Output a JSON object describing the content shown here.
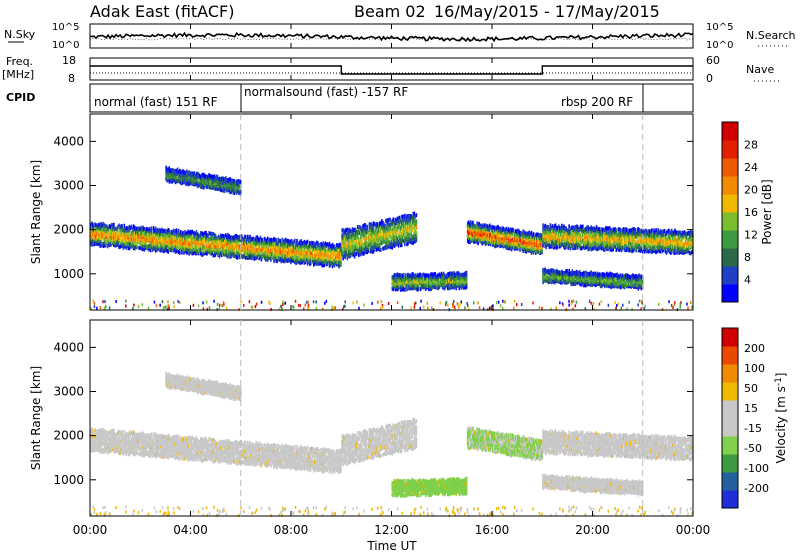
{
  "header": {
    "title": "Adak East (fitACF)",
    "beam": "Beam 02",
    "date_range": "16/May/2015 - 17/May/2015"
  },
  "panel_labels": {
    "nsky": "N.Sky",
    "nsearch": "N.Search",
    "freq": "Freq.",
    "freq_unit": "[MHz]",
    "nave": "Nave",
    "cpid": "CPID",
    "nsky_top": "10^5",
    "nsky_bottom": "10^0",
    "freq_top": "18",
    "freq_bottom": "8",
    "nave_top": "60",
    "nave_bottom": "0"
  },
  "cpid_segments": [
    {
      "label": "normal (fast) 151 RF",
      "start": "00:00",
      "end": "06:00"
    },
    {
      "label": "normalsound (fast) -157 RF",
      "start": "06:00",
      "end": "22:00"
    },
    {
      "label": "rbsp 200 RF",
      "start": "22:00",
      "end": "24:00"
    }
  ],
  "frequency_steps": [
    {
      "start_h": 0,
      "end_h": 10,
      "level": "high"
    },
    {
      "start_h": 10,
      "end_h": 18,
      "level": "low"
    },
    {
      "start_h": 18,
      "end_h": 24,
      "level": "high"
    }
  ],
  "colors": {
    "power": [
      "#0000ff",
      "#1f3fc4",
      "#2a6a4a",
      "#3e9a3e",
      "#7bbf2e",
      "#f0b800",
      "#f28a00",
      "#ef5a00",
      "#e22000",
      "#d00000"
    ],
    "velocity": [
      "#1f2fd8",
      "#2460a0",
      "#3e9a3e",
      "#7fd04a",
      "#c8c8c8",
      "#c8c8c8",
      "#f0b800",
      "#f08a00",
      "#ea4a00",
      "#d00000"
    ]
  },
  "chart_data": [
    {
      "type": "heatmap",
      "name": "power",
      "ylabel": "Slant Range [km]",
      "colorbar_label": "Power [dB]",
      "colorbar_ticks": [
        "4",
        "8",
        "12",
        "16",
        "20",
        "24",
        "28"
      ],
      "x_ticks": [
        "00:00",
        "04:00",
        "08:00",
        "12:00",
        "16:00",
        "20:00",
        "00:00"
      ],
      "y_ticks": [
        "1000",
        "2000",
        "3000",
        "4000"
      ],
      "xlim_hours": [
        0,
        24
      ],
      "ylim_km": [
        180,
        4620
      ],
      "scatter_bands": [
        {
          "t0": 0,
          "t1": 10,
          "r_center_start": 1950,
          "r_center_end": 1450,
          "width": 450,
          "peak_power": 18
        },
        {
          "t0": 10,
          "t1": 13,
          "r_center_start": 1700,
          "r_center_end": 2100,
          "width": 600,
          "peak_power": 14
        },
        {
          "t0": 12,
          "t1": 15,
          "r_center_start": 850,
          "r_center_end": 900,
          "width": 300,
          "peak_power": 12
        },
        {
          "t0": 15,
          "t1": 18,
          "r_center_start": 2000,
          "r_center_end": 1700,
          "width": 400,
          "peak_power": 22
        },
        {
          "t0": 18,
          "t1": 24,
          "r_center_start": 1900,
          "r_center_end": 1750,
          "width": 450,
          "peak_power": 16
        },
        {
          "t0": 18,
          "t1": 22,
          "r_center_start": 1000,
          "r_center_end": 850,
          "width": 250,
          "peak_power": 10
        },
        {
          "t0": 3,
          "t1": 6,
          "r_center_start": 3300,
          "r_center_end": 3000,
          "width": 250,
          "peak_power": 8
        }
      ]
    },
    {
      "type": "heatmap",
      "name": "velocity",
      "xlabel": "Time UT",
      "ylabel": "Slant Range [km]",
      "colorbar_label": "Velocity [m s^-1]",
      "colorbar_ticks": [
        "-200",
        "-100",
        "-50",
        "-15",
        "15",
        "50",
        "100",
        "200"
      ],
      "x_ticks": [
        "00:00",
        "04:00",
        "08:00",
        "12:00",
        "16:00",
        "20:00",
        "00:00"
      ],
      "y_ticks": [
        "1000",
        "2000",
        "3000",
        "4000"
      ],
      "xlim_hours": [
        0,
        24
      ],
      "ylim_km": [
        180,
        4620
      ]
    },
    {
      "type": "line",
      "name": "noise",
      "series": [
        {
          "name": "N.Sky"
        },
        {
          "name": "N.Search"
        }
      ]
    }
  ],
  "axis": {
    "xlabel": "Time UT"
  }
}
